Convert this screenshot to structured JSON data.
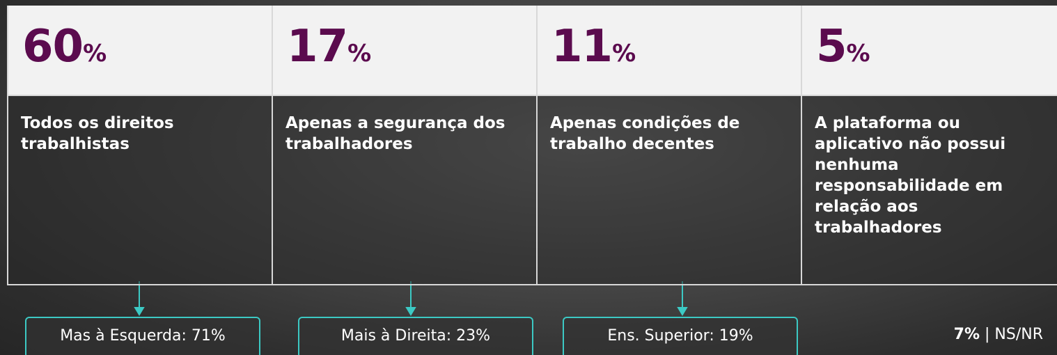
{
  "cards": [
    {
      "number": "60",
      "unit": "%",
      "label": "Todos os direitos trabalhistas"
    },
    {
      "number": "17",
      "unit": "%",
      "label": "Apenas a segurança dos trabalhadores"
    },
    {
      "number": "11",
      "unit": "%",
      "label": "Apenas condições de trabalho decentes"
    },
    {
      "number": "5",
      "unit": "%",
      "label": "A plataforma ou aplicativo não possui nenhuma responsabilidade em relação aos trabalhadores"
    }
  ],
  "callouts": [
    "Mas à Esquerda: 71%",
    "Mais à Direita: 23%",
    "Ens. Superior: 19%"
  ],
  "footer": {
    "value": "7%",
    "separator": "|",
    "label": "NS/NR"
  }
}
